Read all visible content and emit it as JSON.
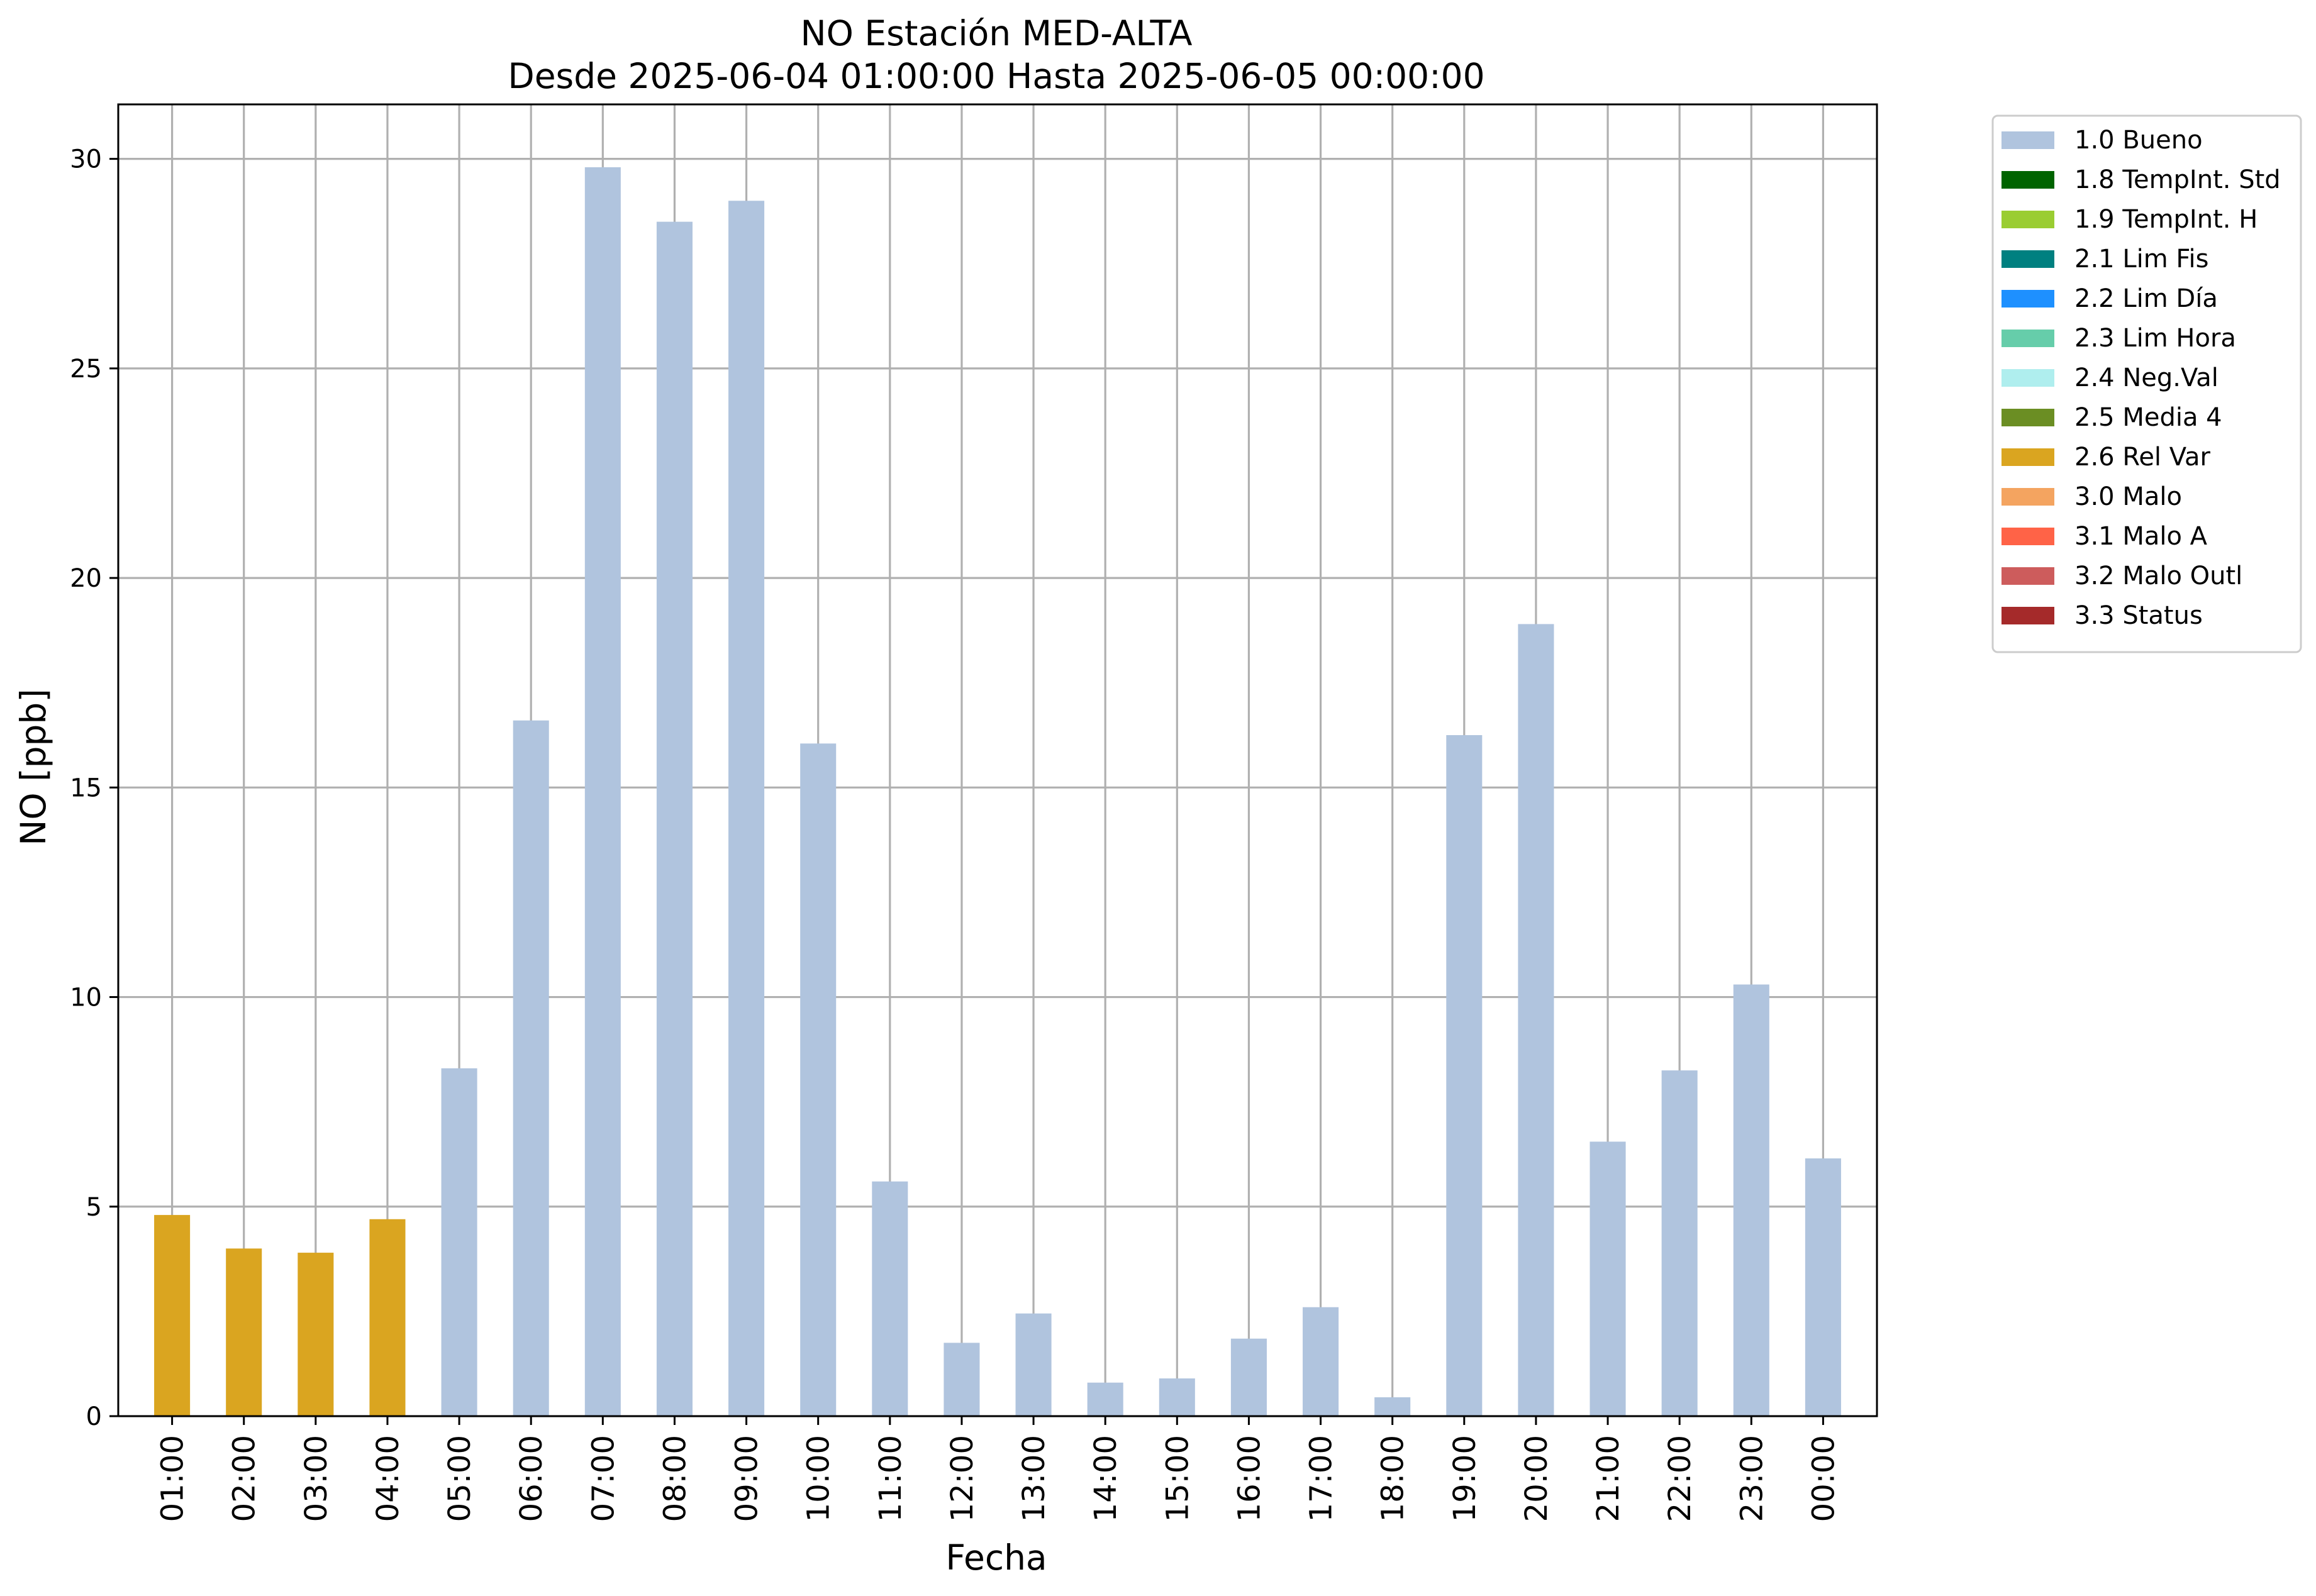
{
  "chart_data": {
    "type": "bar",
    "title": "NO Estación MED-ALTA",
    "subtitle": "Desde 2025-06-04 01:00:00 Hasta 2025-06-05 00:00:00",
    "xlabel": "Fecha",
    "ylabel": "NO [ppb]",
    "ylim": [
      0,
      31.3
    ],
    "yticks": [
      "0",
      "5",
      "10",
      "15",
      "20",
      "25",
      "30"
    ],
    "grid": true,
    "legend_position": "outside-right-top",
    "categories": [
      "01:00",
      "02:00",
      "03:00",
      "04:00",
      "05:00",
      "06:00",
      "07:00",
      "08:00",
      "09:00",
      "10:00",
      "11:00",
      "12:00",
      "13:00",
      "14:00",
      "15:00",
      "16:00",
      "17:00",
      "18:00",
      "19:00",
      "20:00",
      "21:00",
      "22:00",
      "23:00",
      "00:00"
    ],
    "values": [
      4.8,
      4.0,
      3.9,
      4.7,
      8.3,
      16.6,
      29.8,
      28.5,
      29.0,
      16.05,
      5.6,
      1.75,
      2.45,
      0.8,
      0.9,
      1.85,
      2.6,
      0.45,
      16.25,
      18.9,
      6.55,
      8.25,
      10.3,
      6.15
    ],
    "flags": [
      "2.6 Rel Var",
      "2.6 Rel Var",
      "2.6 Rel Var",
      "2.6 Rel Var",
      "1.0 Bueno",
      "1.0 Bueno",
      "1.0 Bueno",
      "1.0 Bueno",
      "1.0 Bueno",
      "1.0 Bueno",
      "1.0 Bueno",
      "1.0 Bueno",
      "1.0 Bueno",
      "1.0 Bueno",
      "1.0 Bueno",
      "1.0 Bueno",
      "1.0 Bueno",
      "1.0 Bueno",
      "1.0 Bueno",
      "1.0 Bueno",
      "1.0 Bueno",
      "1.0 Bueno",
      "1.0 Bueno",
      "1.0 Bueno"
    ],
    "legend": [
      {
        "label": "1.0 Bueno",
        "color": "#b0c4de"
      },
      {
        "label": "1.8 TempInt. Std",
        "color": "#006400"
      },
      {
        "label": "1.9 TempInt. H",
        "color": "#9acd32"
      },
      {
        "label": "2.1 Lim Fis",
        "color": "#008080"
      },
      {
        "label": "2.2 Lim Día",
        "color": "#1e90ff"
      },
      {
        "label": "2.3 Lim Hora",
        "color": "#66cdaa"
      },
      {
        "label": "2.4 Neg.Val",
        "color": "#afeeee"
      },
      {
        "label": "2.5 Media 4",
        "color": "#6b8e23"
      },
      {
        "label": "2.6 Rel Var",
        "color": "#daa520"
      },
      {
        "label": "3.0 Malo",
        "color": "#f4a460"
      },
      {
        "label": "3.1 Malo A",
        "color": "#ff6347"
      },
      {
        "label": "3.2 Malo Outl",
        "color": "#cd5c5c"
      },
      {
        "label": "3.3 Status",
        "color": "#a52a2a"
      }
    ]
  }
}
